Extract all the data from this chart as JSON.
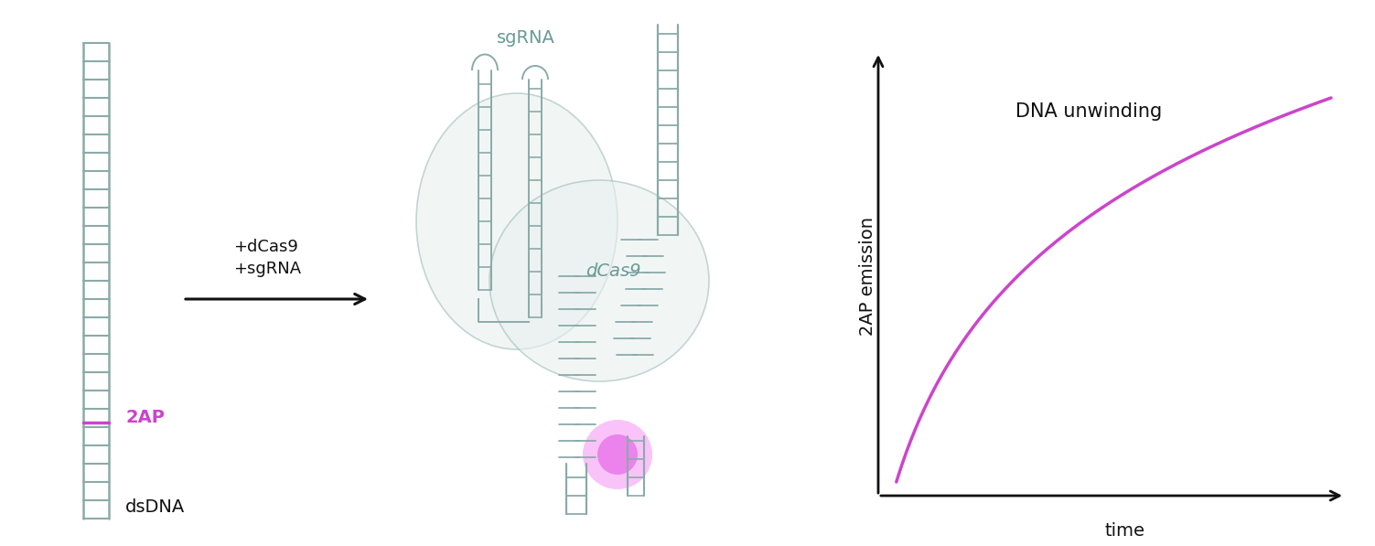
{
  "fig_width": 15.03,
  "fig_height": 5.97,
  "dpi": 100,
  "bg_color": "#ffffff",
  "dna_color": "#8aaba8",
  "dna_color_dark": "#5a8a87",
  "purple_color": "#cc44cc",
  "text_color_gray": "#6a9a97",
  "text_color_black": "#111111",
  "arrow_color": "#111111",
  "curve_color": "#cc44cc",
  "title_text": "DNA unwinding",
  "ylabel_text": "2AP emission",
  "xlabel_text": "time",
  "label_2ap": "2AP",
  "label_dsdna": "dsDNA",
  "label_sgrna": "sgRNA",
  "label_dcas9": "dCas9",
  "label_add": "+dCas9\n+sgRNA"
}
